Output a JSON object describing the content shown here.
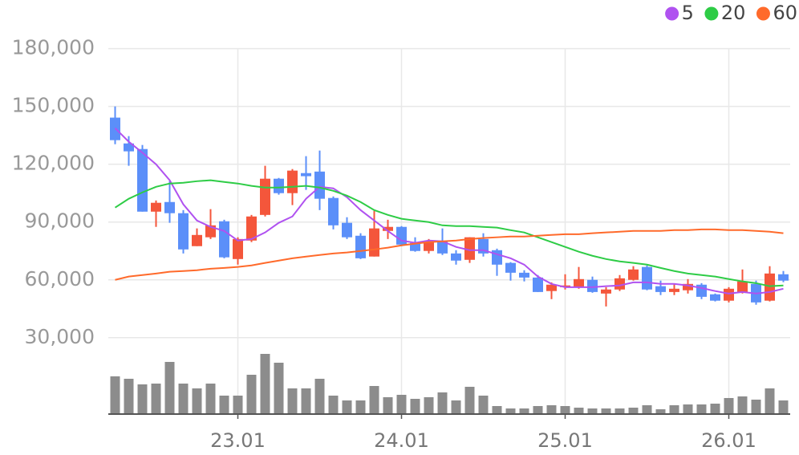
{
  "chart_data": {
    "type": "candlestick",
    "categories": [
      null,
      null,
      null,
      null,
      null,
      null,
      null,
      null,
      null,
      "23.01",
      null,
      null,
      null,
      null,
      null,
      null,
      null,
      null,
      null,
      null,
      null,
      "24.01",
      null,
      null,
      null,
      null,
      null,
      null,
      null,
      null,
      null,
      null,
      null,
      "25.01",
      null,
      null,
      null,
      null,
      null,
      null,
      null,
      null,
      null,
      null,
      null,
      "26.01",
      null,
      null,
      null,
      null
    ],
    "open": [
      144200,
      130800,
      127900,
      95400,
      100400,
      94600,
      77500,
      82100,
      90400,
      70800,
      80400,
      93700,
      112500,
      105000,
      115400,
      116200,
      102500,
      89600,
      82900,
      72100,
      85400,
      87500,
      79200,
      75000,
      80000,
      73700,
      70400,
      81200,
      75400,
      68800,
      63700,
      61200,
      54200,
      56200,
      56200,
      60000,
      52900,
      55000,
      60000,
      66700,
      56700,
      53700,
      54600,
      57500,
      52500,
      49200,
      53700,
      57900,
      49200,
      62900
    ],
    "high": [
      150000,
      134600,
      130000,
      101200,
      111200,
      96200,
      86700,
      96700,
      91200,
      82100,
      93700,
      119200,
      112900,
      117500,
      124200,
      127100,
      103300,
      92500,
      84200,
      95800,
      91200,
      87900,
      82100,
      81200,
      86700,
      75400,
      82100,
      84200,
      76200,
      69200,
      65000,
      62500,
      58700,
      62900,
      66700,
      61700,
      56200,
      62500,
      67100,
      67500,
      59600,
      57900,
      60400,
      58300,
      52900,
      56200,
      65400,
      59600,
      67100,
      64600
    ],
    "low": [
      130400,
      119200,
      95400,
      87500,
      89600,
      73700,
      77500,
      81200,
      71200,
      67900,
      79600,
      92900,
      104200,
      98800,
      106700,
      96200,
      86200,
      81200,
      70800,
      72100,
      81200,
      77500,
      74600,
      73700,
      72900,
      67900,
      68800,
      72100,
      62100,
      59600,
      59200,
      53700,
      50000,
      55000,
      55400,
      53300,
      46200,
      54200,
      59600,
      54600,
      52100,
      52100,
      52900,
      50000,
      48800,
      48300,
      52900,
      47100,
      48800,
      58800
    ],
    "close": [
      132500,
      126700,
      95400,
      100000,
      94600,
      75800,
      83300,
      88300,
      71700,
      81200,
      92900,
      112500,
      105000,
      116700,
      113800,
      102100,
      88300,
      82100,
      71200,
      86700,
      87500,
      78300,
      75000,
      80000,
      73700,
      70000,
      82100,
      73700,
      67900,
      63700,
      61200,
      53700,
      57500,
      57100,
      60400,
      53700,
      55000,
      60800,
      65400,
      55000,
      53700,
      55400,
      57900,
      51200,
      49200,
      55400,
      59200,
      48300,
      63300,
      59600
    ],
    "up_color": "#f4563b",
    "down_color": "#5b8ff9",
    "volume": [
      47,
      44,
      37,
      38,
      65,
      38,
      32,
      38,
      23,
      23,
      49,
      75,
      64,
      32,
      32,
      44,
      23,
      17,
      17,
      35,
      21,
      24,
      19,
      21,
      27,
      17,
      34,
      23,
      10,
      7,
      7,
      10,
      11,
      10,
      8,
      7,
      7,
      7,
      8,
      11,
      6,
      11,
      12,
      12,
      13,
      20,
      22,
      18,
      32,
      17
    ],
    "volume_color": "#8c8c8c",
    "series": [
      {
        "name": "5",
        "color": "#b052f0",
        "values": [
          138750,
          131700,
          126000,
          120000,
          111700,
          99200,
          90800,
          87500,
          85400,
          80400,
          81200,
          84600,
          89600,
          92900,
          102100,
          108300,
          107500,
          102900,
          96200,
          90800,
          85400,
          80400,
          79200,
          80400,
          80000,
          77100,
          75400,
          75400,
          73300,
          71200,
          67900,
          61700,
          57900,
          56200,
          56200,
          56200,
          56700,
          57100,
          58700,
          58700,
          57900,
          57900,
          57100,
          55800,
          54200,
          52900,
          53700,
          52900,
          53700,
          55400
        ]
      },
      {
        "name": "20",
        "color": "#2ecc46",
        "values": [
          97500,
          102100,
          105400,
          108300,
          110000,
          110400,
          111200,
          111700,
          110800,
          110000,
          108800,
          107900,
          107900,
          108300,
          108800,
          107900,
          106200,
          103700,
          100400,
          96200,
          93700,
          91700,
          90800,
          90000,
          88300,
          87900,
          87900,
          87500,
          87100,
          85800,
          84600,
          82100,
          79600,
          77100,
          74600,
          72500,
          70800,
          69600,
          68800,
          67900,
          66200,
          64600,
          63300,
          62500,
          61700,
          60400,
          59200,
          58300,
          56700,
          57100
        ]
      },
      {
        "name": "60",
        "color": "#ff6a2b",
        "values": [
          60000,
          61700,
          62500,
          63300,
          64200,
          64600,
          65000,
          65800,
          66200,
          66700,
          67500,
          68800,
          70000,
          71200,
          72100,
          72900,
          73700,
          74200,
          75000,
          75800,
          76700,
          77900,
          78800,
          79600,
          80000,
          80400,
          81200,
          81700,
          82100,
          82500,
          82500,
          82900,
          83300,
          83700,
          83700,
          84200,
          84600,
          85000,
          85400,
          85400,
          85400,
          85800,
          85800,
          86200,
          86200,
          85800,
          85800,
          85400,
          85000,
          84200
        ]
      }
    ],
    "ylim": [
      22000,
      189000
    ],
    "yticks": [
      {
        "value": 30000,
        "label": "30,000"
      },
      {
        "value": 60000,
        "label": "60,000"
      },
      {
        "value": 90000,
        "label": "90,000"
      },
      {
        "value": 120000,
        "label": "120,000"
      },
      {
        "value": 150000,
        "label": "150,000"
      },
      {
        "value": 180000,
        "label": "180,000"
      }
    ],
    "grid": true,
    "legend": "top-right"
  }
}
